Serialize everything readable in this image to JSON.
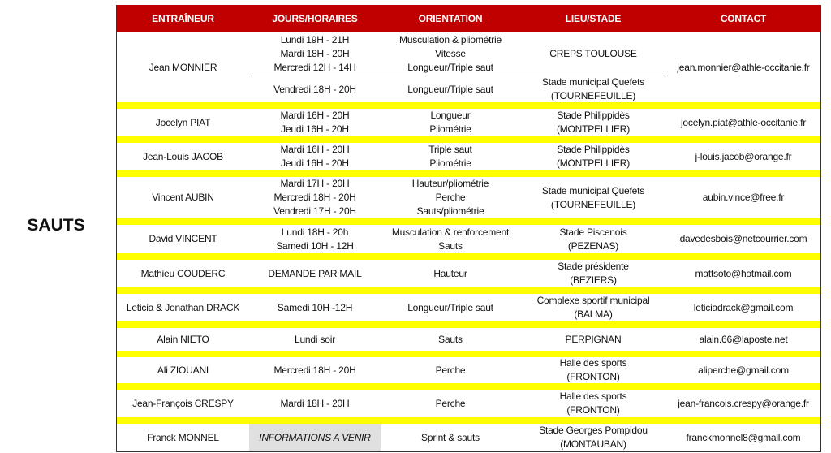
{
  "section_label": "SAUTS",
  "headers": [
    "ENTRAÎNEUR",
    "JOURS/HORAIRES",
    "ORIENTATION",
    "LIEU/STADE",
    "CONTACT"
  ],
  "colors": {
    "header_bg": "#c00000",
    "separator": "#ffff00",
    "pending_bg": "#e0e0e0"
  },
  "first": {
    "coach": "Jean MONNIER",
    "contact": "jean.monnier@athle-occitanie.fr",
    "top": {
      "hours": [
        "Lundi 19H - 21H",
        "Mardi 18H - 20H",
        "Mercredi 12H - 14H"
      ],
      "orientation": [
        "Musculation & pliométrie",
        "Vitesse",
        "Longueur/Triple saut"
      ],
      "place": [
        "CREPS TOULOUSE"
      ]
    },
    "bottom": {
      "hours": [
        "Vendredi 18H - 20H"
      ],
      "orientation": [
        "Longueur/Triple saut"
      ],
      "place": [
        "Stade municipal Quefets",
        "(TOURNEFEUILLE)"
      ]
    }
  },
  "rows": [
    {
      "coach": "Jocelyn PIAT",
      "hours": [
        "Mardi 16H - 20H",
        "Jeudi 16H - 20H"
      ],
      "orientation": [
        "Longueur",
        "Pliométrie"
      ],
      "place": [
        "Stade Philippidès",
        "(MONTPELLIER)"
      ],
      "contact": "jocelyn.piat@athle-occitanie.fr"
    },
    {
      "coach": "Jean-Louis JACOB",
      "hours": [
        "Mardi 16H - 20H",
        "Jeudi 16H - 20H"
      ],
      "orientation": [
        "Triple saut",
        "Pliométrie"
      ],
      "place": [
        "Stade Philippidès",
        "(MONTPELLIER)"
      ],
      "contact": "j-louis.jacob@orange.fr"
    },
    {
      "coach": "Vincent AUBIN",
      "hours": [
        "Mardi 17H - 20H",
        "Mercredi 18H - 20H",
        "Vendredi 17H - 20H"
      ],
      "orientation": [
        "Hauteur/pliométrie",
        "Perche",
        "Sauts/pliométrie"
      ],
      "place": [
        "Stade municipal Quefets",
        "(TOURNEFEUILLE)"
      ],
      "contact": "aubin.vince@free.fr"
    },
    {
      "coach": "David VINCENT",
      "hours": [
        "Lundi 18H - 20h",
        "Samedi 10H - 12H"
      ],
      "orientation": [
        "Musculation & renforcement",
        "Sauts"
      ],
      "place": [
        "Stade Piscenois",
        "(PEZENAS)"
      ],
      "contact": "davedesbois@netcourrier.com"
    },
    {
      "coach": "Mathieu COUDERC",
      "hours": [
        "DEMANDE PAR MAIL"
      ],
      "orientation": [
        "Hauteur"
      ],
      "place": [
        "Stade présidente",
        "(BEZIERS)"
      ],
      "contact": "mattsoto@hotmail.com"
    },
    {
      "coach": "Leticia & Jonathan DRACK",
      "hours": [
        "Samedi 10H  -12H"
      ],
      "orientation": [
        "Longueur/Triple saut"
      ],
      "place": [
        "Complexe sportif municipal",
        "(BALMA)"
      ],
      "contact": "leticiadrack@gmail.com"
    },
    {
      "coach": "Alain NIETO",
      "hours": [
        "Lundi soir"
      ],
      "orientation": [
        "Sauts"
      ],
      "place": [
        "PERPIGNAN"
      ],
      "contact": "alain.66@laposte.net"
    },
    {
      "coach": "Ali ZIOUANI",
      "hours": [
        "Mercredi 18H - 20H"
      ],
      "orientation": [
        "Perche"
      ],
      "place": [
        "Halle des sports",
        "(FRONTON)"
      ],
      "contact": "aliperche@gmail.com"
    },
    {
      "coach": "Jean-François CRESPY",
      "hours": [
        "Mardi 18H - 20H"
      ],
      "orientation": [
        "Perche"
      ],
      "place": [
        "Halle des sports",
        "(FRONTON)"
      ],
      "contact": "jean-francois.crespy@orange.fr"
    },
    {
      "coach": "Franck MONNEL",
      "hours": [
        "INFORMATIONS A VENIR"
      ],
      "pending": true,
      "orientation": [
        "Sprint & sauts"
      ],
      "place": [
        "Stade Georges Pompidou",
        "(MONTAUBAN)"
      ],
      "contact": "franckmonnel8@gmail.com"
    }
  ]
}
